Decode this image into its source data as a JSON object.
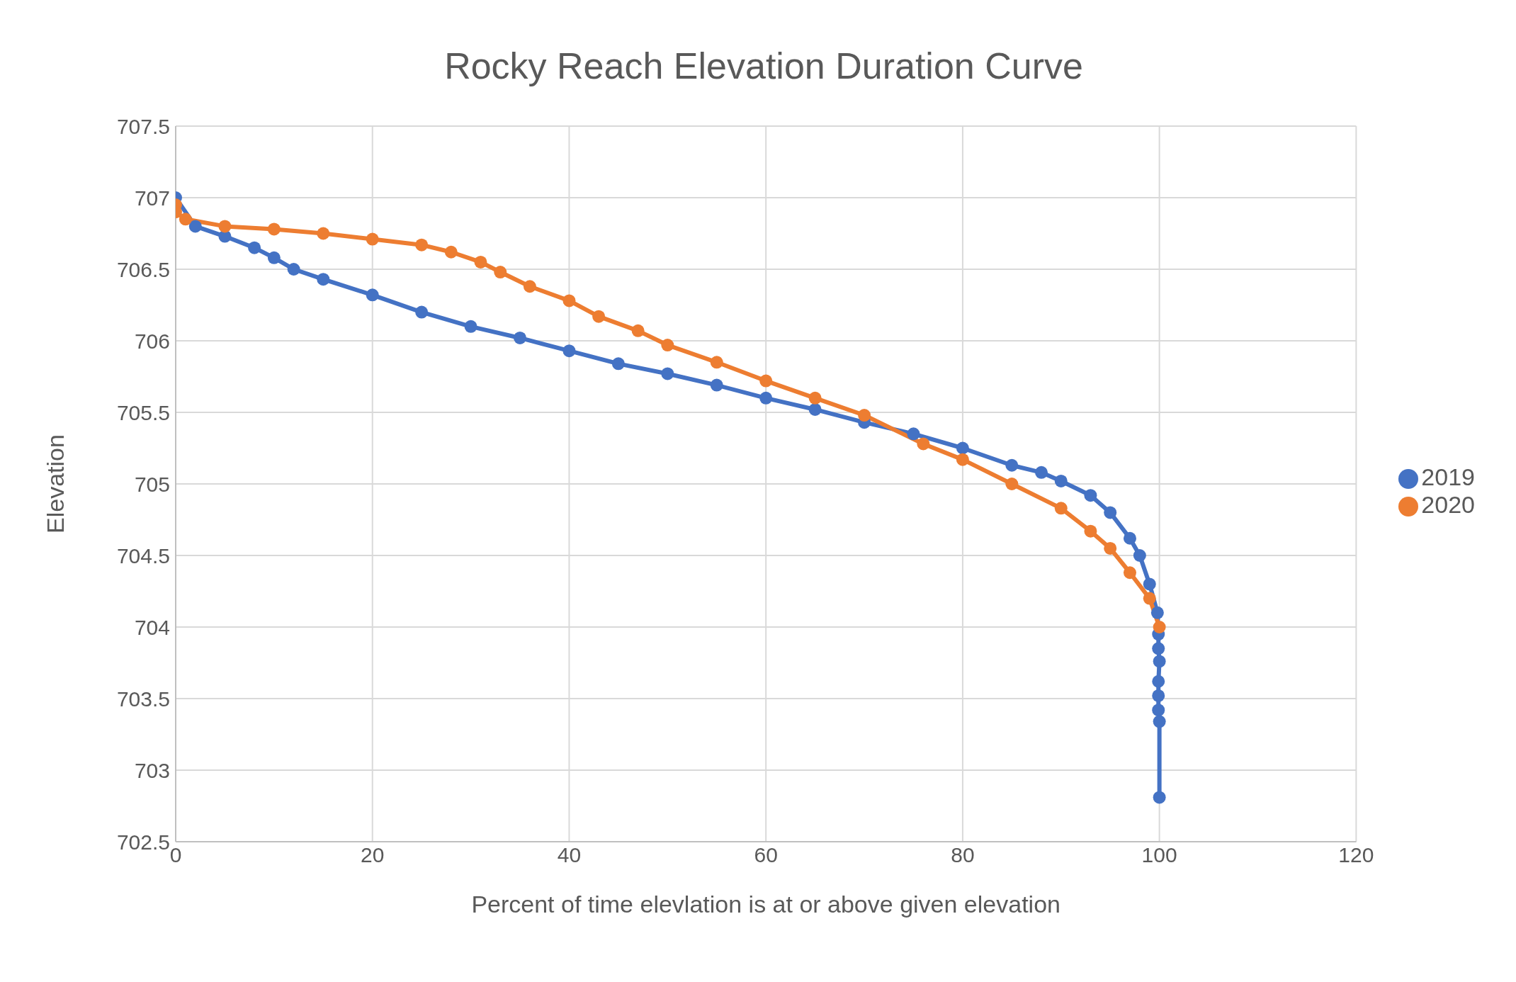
{
  "chart_data": {
    "type": "line",
    "title": "Rocky Reach Elevation Duration Curve",
    "xlabel": "Percent of time elevlation is at or above given elevation",
    "ylabel": "Elevation",
    "xlim": [
      0,
      120
    ],
    "xticks": [
      0,
      20,
      40,
      60,
      80,
      100,
      120
    ],
    "ylim": [
      702.5,
      707.5
    ],
    "yticks": [
      702.5,
      703,
      703.5,
      704,
      704.5,
      705,
      705.5,
      706,
      706.5,
      707,
      707.5
    ],
    "grid": true,
    "legend": "right",
    "marker": "circle",
    "line_style": "solid",
    "series": [
      {
        "name": "2019",
        "color": "#4472c4",
        "x": [
          0,
          2,
          5,
          8,
          10,
          12,
          15,
          20,
          25,
          30,
          35,
          40,
          45,
          50,
          55,
          60,
          65,
          70,
          75,
          80,
          85,
          88,
          90,
          93,
          95,
          97,
          98,
          99,
          99.8,
          99.9,
          99.9,
          100,
          99.9,
          99.9,
          99.9,
          100,
          100
        ],
        "values": [
          707.0,
          706.8,
          706.73,
          706.65,
          706.58,
          706.5,
          706.43,
          706.32,
          706.2,
          706.1,
          706.02,
          705.93,
          705.84,
          705.77,
          705.69,
          705.6,
          705.52,
          705.43,
          705.35,
          705.25,
          705.13,
          705.08,
          705.02,
          704.92,
          704.8,
          704.62,
          704.5,
          704.3,
          704.1,
          703.95,
          703.85,
          703.76,
          703.62,
          703.52,
          703.42,
          703.34,
          702.81
        ]
      },
      {
        "name": "2020",
        "color": "#ed7d31",
        "x": [
          0,
          0,
          1,
          5,
          10,
          15,
          20,
          25,
          28,
          31,
          33,
          36,
          40,
          43,
          47,
          50,
          55,
          60,
          65,
          70,
          76,
          80,
          85,
          90,
          93,
          95,
          97,
          99,
          100
        ],
        "values": [
          706.95,
          706.9,
          706.85,
          706.8,
          706.78,
          706.75,
          706.71,
          706.67,
          706.62,
          706.55,
          706.48,
          706.38,
          706.28,
          706.17,
          706.07,
          705.97,
          705.85,
          705.72,
          705.6,
          705.48,
          705.28,
          705.17,
          705.0,
          704.83,
          704.67,
          704.55,
          704.38,
          704.2,
          704.0
        ]
      }
    ]
  }
}
